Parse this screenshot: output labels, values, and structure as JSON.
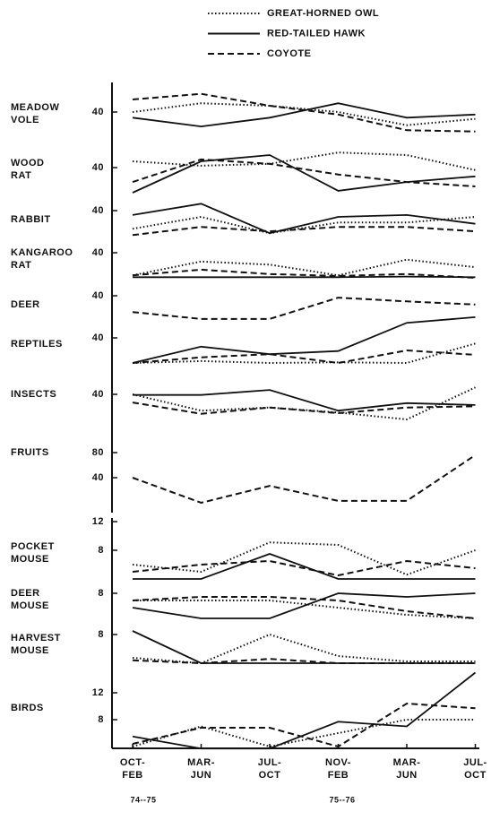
{
  "legend": [
    {
      "name": "GREAT-HORNED OWL",
      "style": "dotted",
      "color": "#111"
    },
    {
      "name": "RED-TAILED HAWK",
      "style": "solid",
      "color": "#111"
    },
    {
      "name": "COYOTE",
      "style": "dashed",
      "color": "#111"
    }
  ],
  "categories": [
    [
      "OCT-",
      "FEB"
    ],
    [
      "MAR-",
      "JUN"
    ],
    [
      "JUL-",
      "OCT"
    ],
    [
      "NOV-",
      "FEB"
    ],
    [
      "MAR-",
      "JUN"
    ],
    [
      "JUL-",
      "OCT"
    ]
  ],
  "years": [
    "74--75",
    "75--76"
  ],
  "chart_data": [
    {
      "type": "line",
      "title": [
        "MEADOW",
        "VOLE"
      ],
      "ylim": [
        0,
        80
      ],
      "yticks": [
        40
      ],
      "series": [
        {
          "values": [
            40,
            54,
            50,
            40,
            19,
            29
          ]
        },
        {
          "values": [
            31,
            17,
            31,
            54,
            31,
            36
          ]
        },
        {
          "values": [
            60,
            69,
            50,
            36,
            11,
            9
          ]
        }
      ]
    },
    {
      "type": "line",
      "title": [
        "WOOD",
        "RAT"
      ],
      "ylim": [
        0,
        80
      ],
      "yticks": [
        40
      ],
      "series": [
        {
          "values": [
            50,
            43,
            46,
            64,
            60,
            36
          ]
        },
        {
          "values": [
            0,
            50,
            60,
            3,
            17,
            26
          ]
        },
        {
          "values": [
            17,
            53,
            46,
            29,
            17,
            10
          ]
        }
      ]
    },
    {
      "type": "line",
      "title": [
        "RABBIT"
      ],
      "ylim": [
        0,
        80
      ],
      "yticks": [
        40
      ],
      "series": [
        {
          "values": [
            11,
            30,
            4,
            21,
            21,
            30
          ]
        },
        {
          "values": [
            33,
            51,
            4,
            30,
            33,
            19
          ]
        },
        {
          "values": [
            1,
            14,
            7,
            14,
            14,
            7
          ]
        }
      ]
    },
    {
      "type": "line",
      "title": [
        "KANGAROO",
        "RAT"
      ],
      "ylim": [
        0,
        80
      ],
      "yticks": [
        40
      ],
      "series": [
        {
          "values": [
            4,
            26,
            21,
            4,
            29,
            17
          ]
        },
        {
          "values": [
            1,
            1,
            1,
            1,
            2,
            1
          ]
        },
        {
          "values": [
            4,
            13,
            6,
            3,
            6,
            0
          ]
        }
      ]
    },
    {
      "type": "line",
      "title": [
        "DEER"
      ],
      "ylim": [
        0,
        80
      ],
      "yticks": [
        40
      ],
      "series": [
        {
          "values": [
            null,
            null,
            null,
            null,
            null,
            null
          ]
        },
        {
          "values": [
            null,
            null,
            null,
            null,
            null,
            null
          ]
        },
        {
          "values": [
            14,
            3,
            3,
            37,
            31,
            26
          ]
        }
      ]
    },
    {
      "type": "line",
      "title": [
        "REPTILES"
      ],
      "ylim": [
        0,
        80
      ],
      "yticks": [
        40
      ],
      "series": [
        {
          "values": [
            0,
            3,
            0,
            1,
            0,
            31
          ]
        },
        {
          "values": [
            0,
            26,
            14,
            19,
            64,
            73
          ]
        },
        {
          "values": [
            0,
            9,
            14,
            0,
            20,
            13
          ]
        }
      ]
    },
    {
      "type": "line",
      "title": [
        "INSECTS"
      ],
      "ylim": [
        0,
        80
      ],
      "yticks": [
        40
      ],
      "series": [
        {
          "values": [
            40,
            14,
            19,
            11,
            0,
            51
          ]
        },
        {
          "values": [
            39,
            39,
            47,
            14,
            26,
            23
          ]
        },
        {
          "values": [
            27,
            9,
            19,
            10,
            19,
            21
          ]
        }
      ]
    },
    {
      "type": "line",
      "title": [
        "FRUITS"
      ],
      "ylim": [
        0,
        100
      ],
      "yticks": [
        40,
        80
      ],
      "series": [
        {
          "values": [
            null,
            null,
            null,
            null,
            null,
            null
          ]
        },
        {
          "values": [
            null,
            null,
            null,
            null,
            null,
            null
          ]
        },
        {
          "values": [
            40,
            0,
            27,
            3,
            3,
            76
          ]
        }
      ]
    },
    {
      "type": "line",
      "title": [
        "POCKET",
        "MOUSE"
      ],
      "ylim": [
        0,
        12
      ],
      "yticks": [
        8,
        12
      ],
      "series": [
        {
          "values": [
            6,
            5,
            9.1,
            8.75,
            4.6,
            8
          ]
        },
        {
          "values": [
            4,
            4,
            7.5,
            4,
            4,
            4
          ]
        },
        {
          "values": [
            5,
            6,
            6.5,
            4.5,
            6.5,
            5.5
          ]
        }
      ]
    },
    {
      "type": "line",
      "title": [
        "DEER",
        "MOUSE"
      ],
      "ylim": [
        0,
        10
      ],
      "yticks": [
        8
      ],
      "series": [
        {
          "values": [
            7,
            7,
            7,
            6,
            5,
            4.5
          ]
        },
        {
          "values": [
            6,
            4.5,
            4.5,
            8,
            7.5,
            8
          ]
        },
        {
          "values": [
            7,
            7.5,
            7.5,
            7,
            5.5,
            4.5
          ]
        }
      ]
    },
    {
      "type": "line",
      "title": [
        "HARVEST",
        "MOUSE"
      ],
      "ylim": [
        0,
        10
      ],
      "yticks": [
        8
      ],
      "series": [
        {
          "values": [
            4.75,
            4,
            8,
            5,
            4.25,
            4.25
          ]
        },
        {
          "values": [
            8.5,
            4,
            4,
            4,
            4,
            4
          ]
        },
        {
          "values": [
            4.4,
            4,
            4.6,
            4,
            4,
            4
          ]
        }
      ]
    },
    {
      "type": "line",
      "title": [
        "BIRDS"
      ],
      "ylim": [
        0,
        16
      ],
      "yticks": [
        8,
        12
      ],
      "series": [
        {
          "values": [
            4,
            7,
            4,
            6,
            8,
            8
          ]
        },
        {
          "values": [
            5.5,
            3.7,
            3.7,
            7.7,
            7,
            15
          ]
        },
        {
          "values": [
            4.4,
            6.8,
            6.8,
            4,
            10.4,
            9.7
          ]
        }
      ]
    }
  ]
}
